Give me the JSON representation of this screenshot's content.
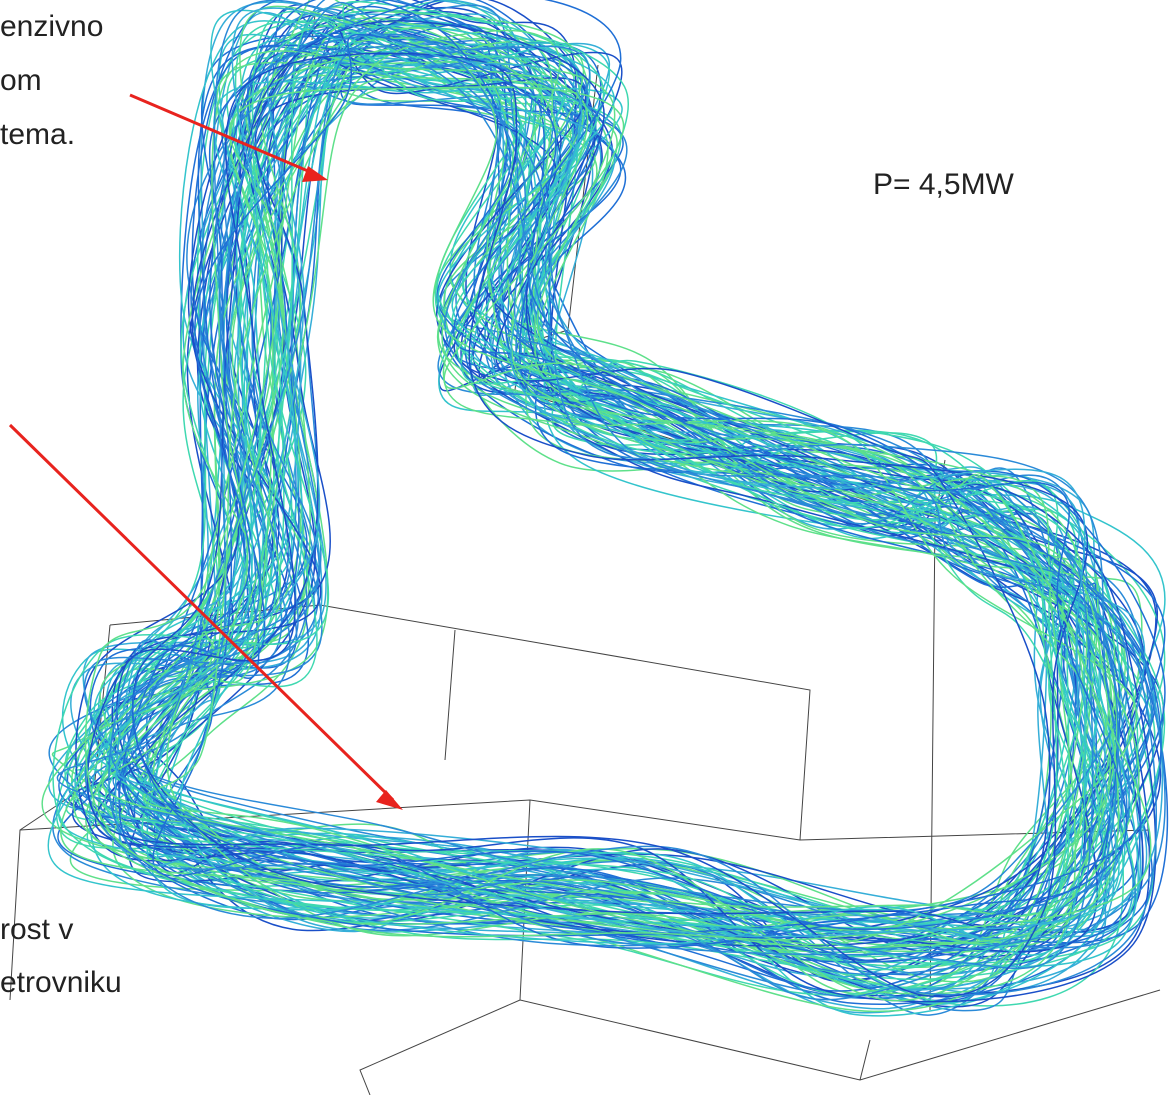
{
  "annotations": {
    "top_left": [
      "enzivno",
      "om",
      "tema."
    ],
    "power": "P= 4,5MW",
    "bottom_left": [
      "rost v",
      "etrovniku"
    ]
  }
}
